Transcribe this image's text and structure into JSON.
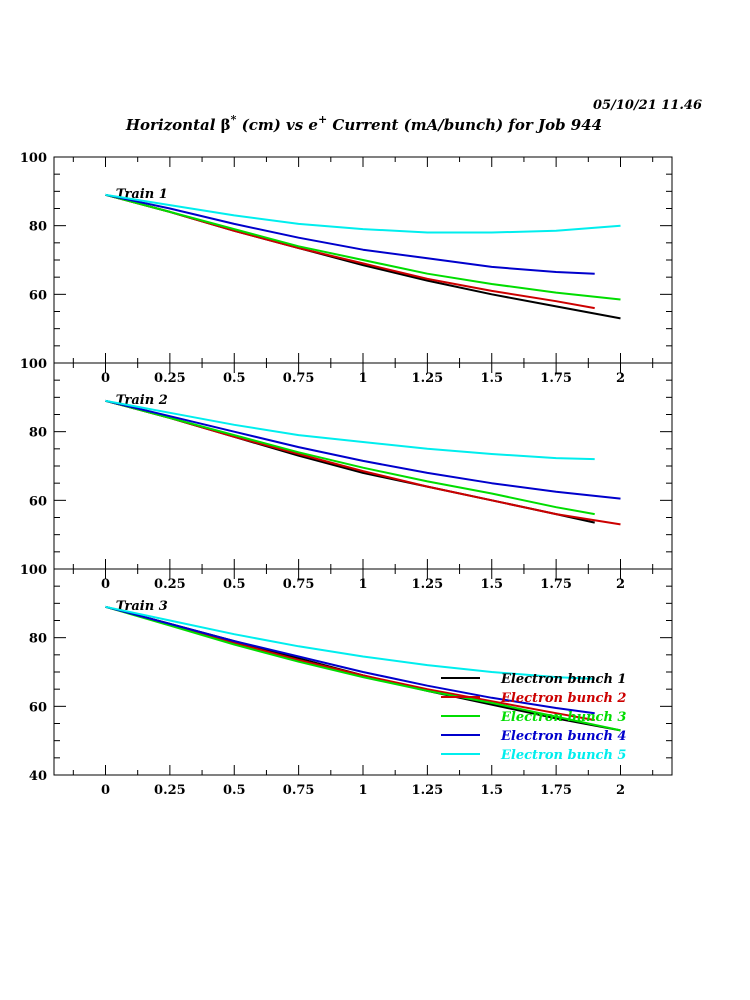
{
  "header": {
    "timestamp": "05/10/21   11.46"
  },
  "title": {
    "prefix": "Horizontal ",
    "beta": "β",
    "star": "*",
    "middle": " (cm) vs e",
    "plus": "+",
    "suffix": " Current (mA/bunch) for Job 944"
  },
  "colors": {
    "Electron bunch 1": "#000000",
    "Electron bunch 2": "#cc0000",
    "Electron bunch 3": "#00dd00",
    "Electron bunch 4": "#0000cc",
    "Electron bunch 5": "#00eeee"
  },
  "legend": {
    "entries": [
      "Electron bunch 1",
      "Electron bunch 2",
      "Electron bunch 3",
      "Electron bunch 4",
      "Electron bunch 5"
    ],
    "placement": "lower-right of bottom panel"
  },
  "chart_data": [
    {
      "type": "line",
      "panel_label": "Train 1",
      "xlim": [
        -0.2,
        2.2
      ],
      "ylim": [
        40,
        100
      ],
      "x_ticks": [
        0,
        0.25,
        0.5,
        0.75,
        1,
        1.25,
        1.5,
        1.75,
        2
      ],
      "x_tick_labels": [
        "0",
        "0.25",
        "0.5",
        "0.75",
        "1",
        "1.25",
        "1.5",
        "1.75",
        "2"
      ],
      "y_tick_labels": [
        "100",
        "80",
        "60"
      ],
      "y_ticks": [
        100,
        80,
        60
      ],
      "series": [
        {
          "name": "Electron bunch 1",
          "x": [
            0,
            0.25,
            0.5,
            0.75,
            1,
            1.25,
            1.5,
            1.75,
            2
          ],
          "y": [
            89,
            84,
            78.5,
            73.5,
            68.5,
            64,
            60,
            56.5,
            53
          ]
        },
        {
          "name": "Electron bunch 2",
          "x": [
            0,
            0.25,
            0.5,
            0.75,
            1,
            1.25,
            1.5,
            1.75,
            1.9
          ],
          "y": [
            89,
            84,
            78.5,
            73.5,
            69,
            64.5,
            61,
            58,
            56
          ]
        },
        {
          "name": "Electron bunch 3",
          "x": [
            0,
            0.25,
            0.5,
            0.75,
            1,
            1.25,
            1.5,
            1.75,
            2
          ],
          "y": [
            89,
            84,
            79,
            74,
            70,
            66,
            63,
            60.5,
            58.5
          ]
        },
        {
          "name": "Electron bunch 4",
          "x": [
            0,
            0.25,
            0.5,
            0.75,
            1,
            1.25,
            1.5,
            1.75,
            1.9
          ],
          "y": [
            89,
            85,
            80.5,
            76.5,
            73,
            70.5,
            68,
            66.5,
            66
          ]
        },
        {
          "name": "Electron bunch 5",
          "x": [
            0,
            0.25,
            0.5,
            0.75,
            1,
            1.25,
            1.5,
            1.75,
            2
          ],
          "y": [
            89,
            86,
            83,
            80.5,
            79,
            78,
            78,
            78.5,
            80
          ]
        }
      ]
    },
    {
      "type": "line",
      "panel_label": "Train 2",
      "xlim": [
        -0.2,
        2.2
      ],
      "ylim": [
        40,
        100
      ],
      "x_ticks": [
        0,
        0.25,
        0.5,
        0.75,
        1,
        1.25,
        1.5,
        1.75,
        2
      ],
      "x_tick_labels": [
        "0",
        "0.25",
        "0.5",
        "0.75",
        "1",
        "1.25",
        "1.5",
        "1.75",
        "2"
      ],
      "y_tick_labels": [
        "100",
        "80",
        "60"
      ],
      "y_ticks": [
        100,
        80,
        60
      ],
      "series": [
        {
          "name": "Electron bunch 1",
          "x": [
            0,
            0.25,
            0.5,
            0.75,
            1,
            1.25,
            1.5,
            1.75,
            1.9
          ],
          "y": [
            89,
            84,
            78.5,
            73,
            68,
            64,
            60,
            56,
            53.5
          ]
        },
        {
          "name": "Electron bunch 2",
          "x": [
            0,
            0.25,
            0.5,
            0.75,
            1,
            1.25,
            1.5,
            1.75,
            2
          ],
          "y": [
            89,
            84,
            78.5,
            73.5,
            68.5,
            64,
            60,
            56,
            53
          ]
        },
        {
          "name": "Electron bunch 3",
          "x": [
            0,
            0.25,
            0.5,
            0.75,
            1,
            1.25,
            1.5,
            1.75,
            1.9
          ],
          "y": [
            89,
            84,
            79,
            74,
            69.5,
            65.5,
            62,
            58,
            56
          ]
        },
        {
          "name": "Electron bunch 4",
          "x": [
            0,
            0.25,
            0.5,
            0.75,
            1,
            1.25,
            1.5,
            1.75,
            2
          ],
          "y": [
            89,
            84.5,
            80,
            75.5,
            71.5,
            68,
            65,
            62.5,
            60.5
          ]
        },
        {
          "name": "Electron bunch 5",
          "x": [
            0,
            0.25,
            0.5,
            0.75,
            1,
            1.25,
            1.5,
            1.75,
            1.9
          ],
          "y": [
            89,
            85.5,
            82,
            79,
            77,
            75,
            73.5,
            72.3,
            72
          ]
        }
      ]
    },
    {
      "type": "line",
      "panel_label": "Train 3",
      "xlim": [
        -0.2,
        2.2
      ],
      "ylim": [
        40,
        100
      ],
      "x_ticks": [
        0,
        0.25,
        0.5,
        0.75,
        1,
        1.25,
        1.5,
        1.75,
        2
      ],
      "x_tick_labels": [
        "0",
        "0.25",
        "0.5",
        "0.75",
        "1",
        "1.25",
        "1.5",
        "1.75",
        "2"
      ],
      "y_tick_labels": [
        "100",
        "80",
        "60",
        "40"
      ],
      "y_ticks": [
        100,
        80,
        60,
        40
      ],
      "series": [
        {
          "name": "Electron bunch 1",
          "x": [
            0,
            0.25,
            0.5,
            0.75,
            1,
            1.25,
            1.5,
            1.75,
            2
          ],
          "y": [
            89,
            84,
            79,
            74,
            69,
            64.5,
            60.5,
            56.5,
            53
          ]
        },
        {
          "name": "Electron bunch 2",
          "x": [
            0,
            0.25,
            0.5,
            0.75,
            1,
            1.25,
            1.5,
            1.75,
            1.9
          ],
          "y": [
            89,
            84,
            78.5,
            73.5,
            69,
            65,
            61.5,
            58,
            56
          ]
        },
        {
          "name": "Electron bunch 3",
          "x": [
            0,
            0.25,
            0.5,
            0.75,
            1,
            1.25,
            1.5,
            1.75,
            2
          ],
          "y": [
            89,
            83.5,
            78,
            73,
            68.5,
            64.5,
            61,
            57,
            53
          ]
        },
        {
          "name": "Electron bunch 4",
          "x": [
            0,
            0.25,
            0.5,
            0.75,
            1,
            1.25,
            1.5,
            1.75,
            1.9
          ],
          "y": [
            89,
            84,
            79,
            74.5,
            70,
            66,
            62.5,
            59.5,
            58
          ]
        },
        {
          "name": "Electron bunch 5",
          "x": [
            0,
            0.25,
            0.5,
            0.75,
            1,
            1.25,
            1.5,
            1.75,
            1.9
          ],
          "y": [
            89,
            85,
            81,
            77.5,
            74.5,
            72,
            70,
            68.5,
            68
          ]
        }
      ]
    }
  ]
}
